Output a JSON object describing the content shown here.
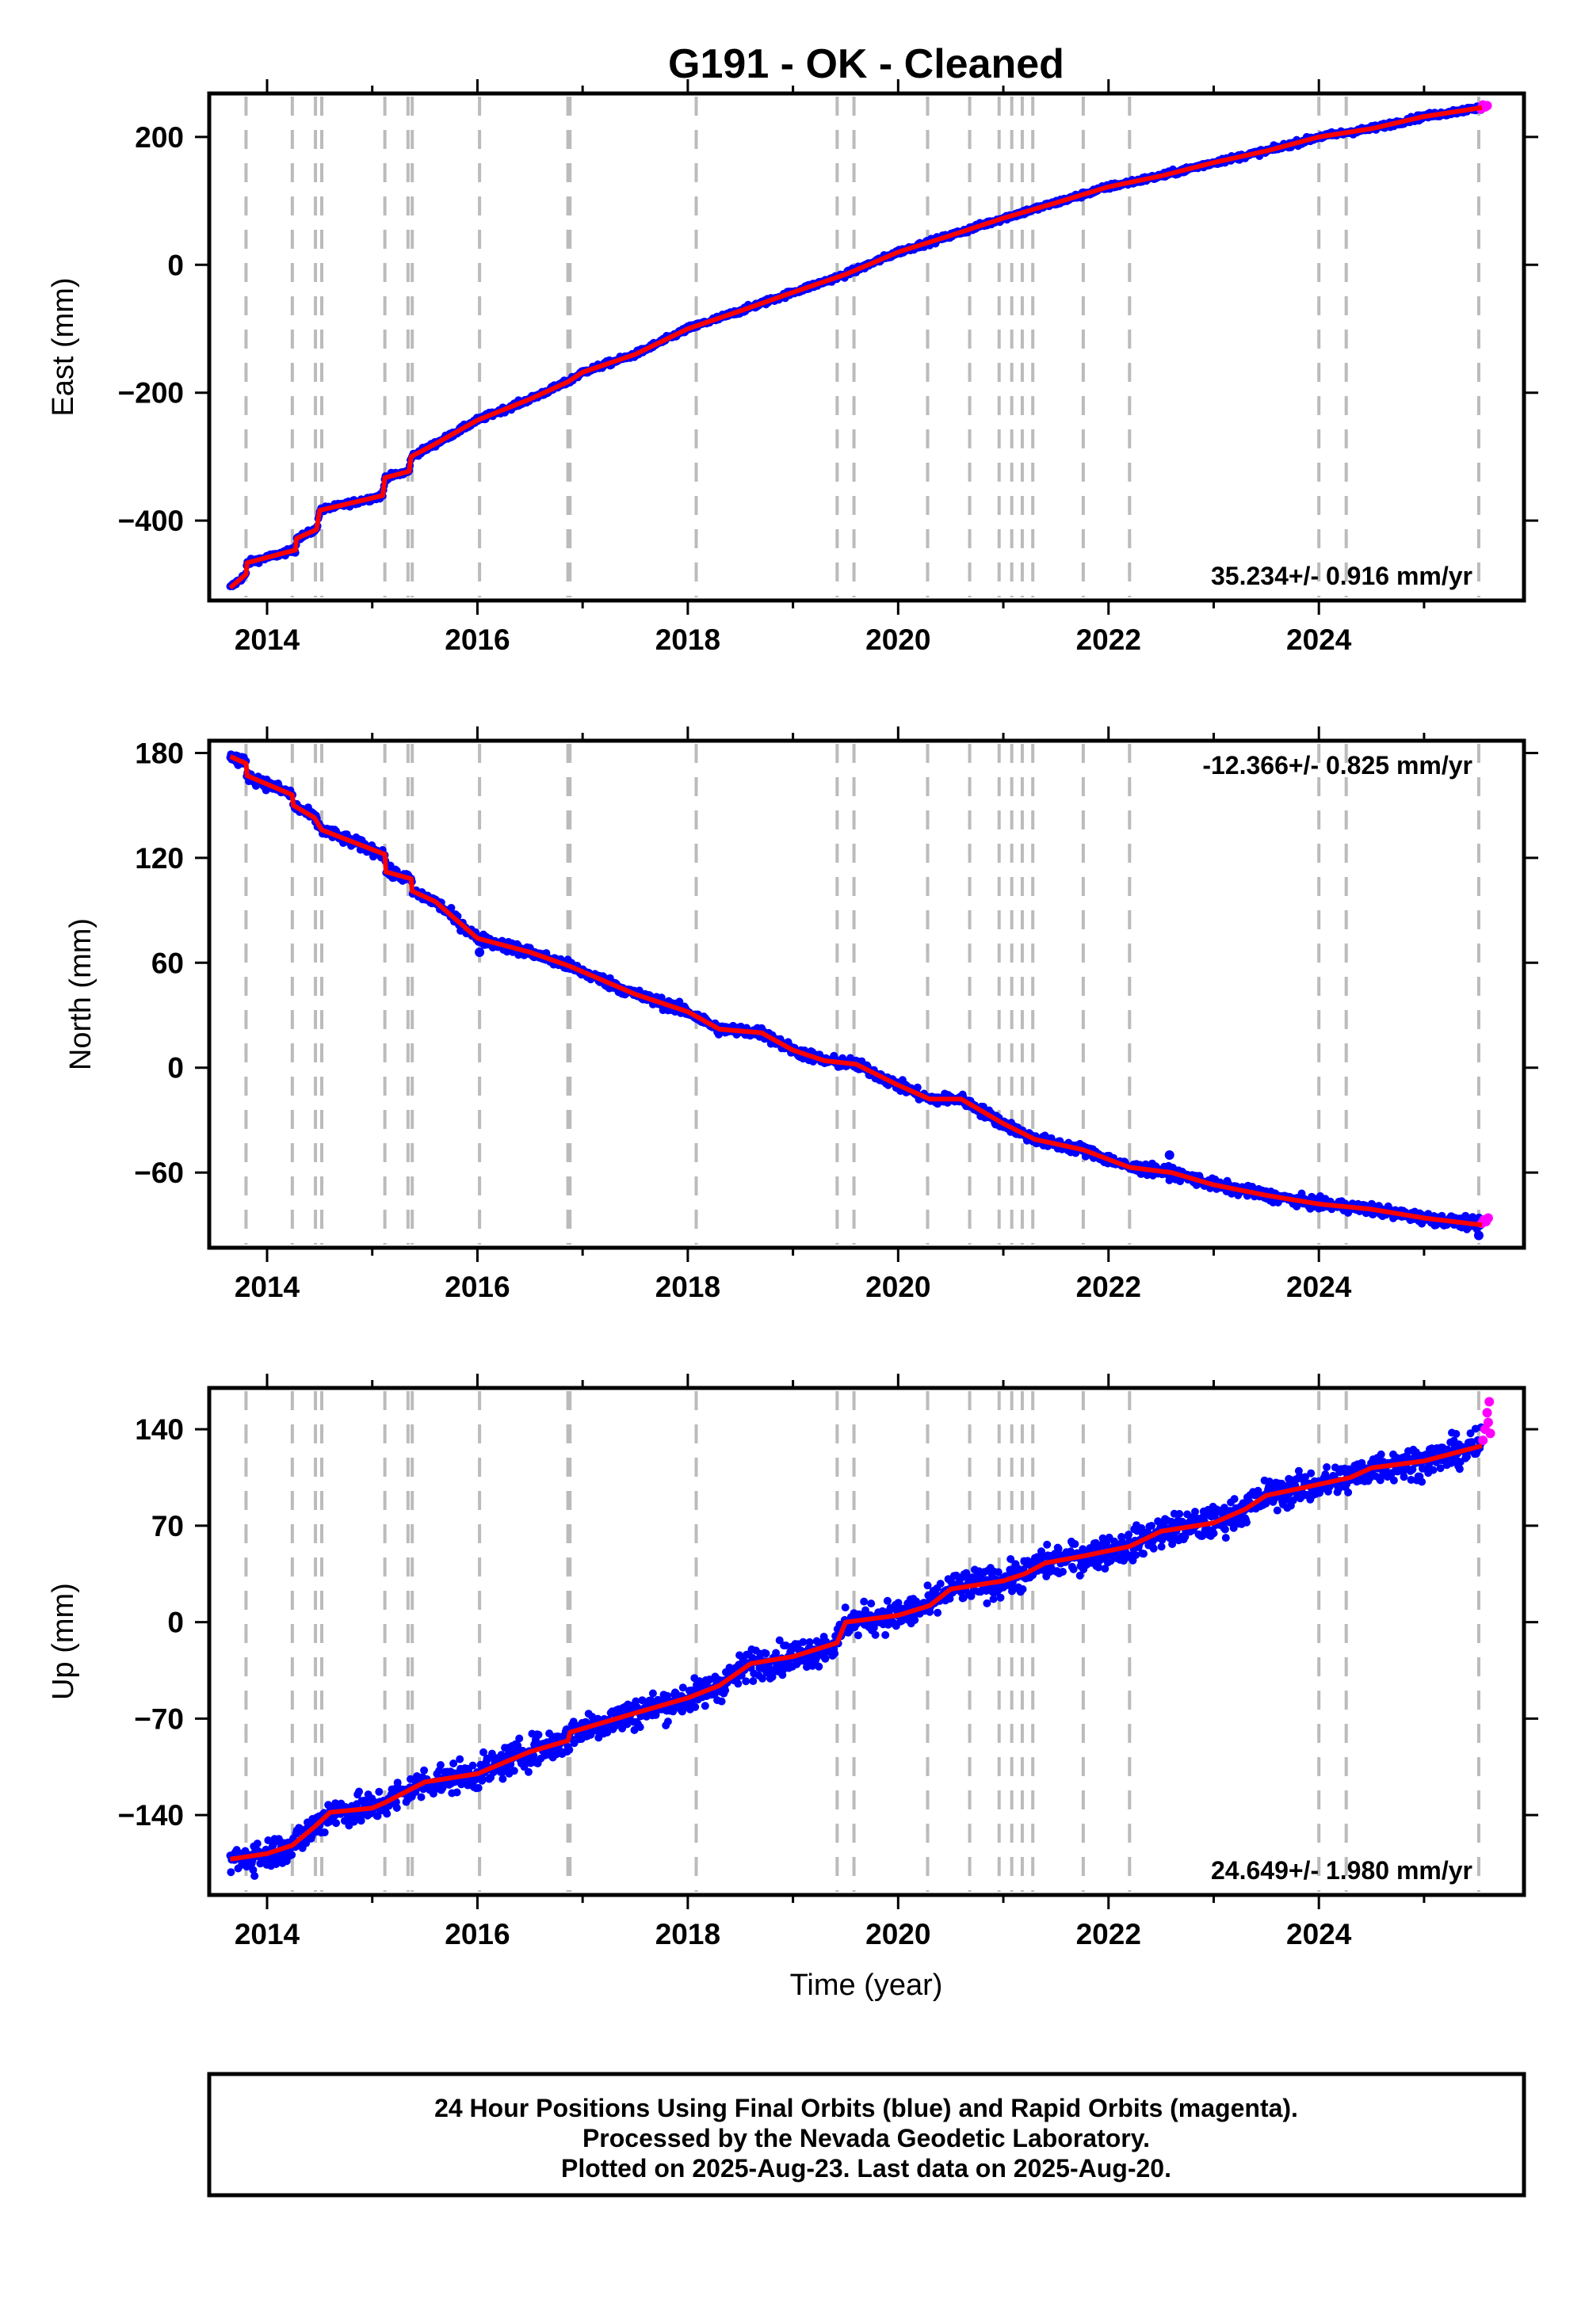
{
  "title": "G191  - OK - Cleaned",
  "x_axis_label": "Time (year)",
  "footer": {
    "line1": "24 Hour Positions Using Final Orbits (blue) and Rapid Orbits (magenta).",
    "line2": "Processed by the Nevada Geodetic Laboratory.",
    "line3": "Plotted on 2025-Aug-23. Last data on 2025-Aug-20."
  },
  "colors": {
    "final": "#0000ff",
    "rapid": "#ff00ff",
    "model": "#ff0000",
    "steps": "#bbbbbb"
  },
  "chart_data": [
    {
      "type": "scatter",
      "ylabel": "East (mm)",
      "rate_label": "35.234+/- 0.916 mm/yr",
      "rate_position": "bottom-right",
      "xlim": [
        2013.45,
        2025.95
      ],
      "ylim": [
        -525,
        268
      ],
      "xticks": [
        2014,
        2016,
        2018,
        2020,
        2022,
        2024
      ],
      "yticks": [
        200,
        0,
        -200,
        -400
      ],
      "ytick_labels": [
        "200",
        "0",
        "−200",
        "−400"
      ],
      "noise": 3,
      "trend": [
        [
          2013.65,
          -505
        ],
        [
          2013.8,
          -484
        ],
        [
          2013.81,
          -466
        ],
        [
          2014.27,
          -446
        ],
        [
          2014.28,
          -428
        ],
        [
          2014.47,
          -414
        ],
        [
          2014.5,
          -384
        ],
        [
          2015.1,
          -361
        ],
        [
          2015.12,
          -333
        ],
        [
          2015.35,
          -323
        ],
        [
          2015.37,
          -300
        ],
        [
          2015.6,
          -280
        ],
        [
          2016.0,
          -243
        ],
        [
          2016.5,
          -210
        ],
        [
          2016.86,
          -183
        ],
        [
          2017.0,
          -168
        ],
        [
          2017.5,
          -140
        ],
        [
          2018.0,
          -100
        ],
        [
          2018.5,
          -72
        ],
        [
          2019.0,
          -43
        ],
        [
          2019.5,
          -15
        ],
        [
          2020.0,
          20
        ],
        [
          2020.5,
          46
        ],
        [
          2021.0,
          73
        ],
        [
          2021.5,
          97
        ],
        [
          2022.0,
          122
        ],
        [
          2022.5,
          139
        ],
        [
          2023.0,
          160
        ],
        [
          2023.5,
          178
        ],
        [
          2024.0,
          200
        ],
        [
          2024.5,
          213
        ],
        [
          2025.0,
          232
        ],
        [
          2025.55,
          246
        ]
      ],
      "rapid_points": [
        [
          2025.54,
          244
        ],
        [
          2025.56,
          250
        ],
        [
          2025.58,
          247
        ],
        [
          2025.6,
          249
        ]
      ],
      "step_epochs": [
        2013.8,
        2014.24,
        2014.46,
        2014.52,
        2015.12,
        2015.34,
        2015.38,
        2016.02,
        2016.86,
        2016.88,
        2018.08,
        2019.42,
        2019.58,
        2020.28,
        2020.68,
        2020.96,
        2021.08,
        2021.18,
        2021.28,
        2021.76,
        2022.2,
        2024.0,
        2024.26,
        2025.52
      ]
    },
    {
      "type": "scatter",
      "ylabel": "North (mm)",
      "rate_label": "-12.366+/- 0.825 mm/yr",
      "rate_position": "top-right",
      "xlim": [
        2013.45,
        2025.95
      ],
      "ylim": [
        -103,
        187
      ],
      "xticks": [
        2014,
        2016,
        2018,
        2020,
        2022,
        2024
      ],
      "yticks": [
        180,
        120,
        60,
        0,
        -60
      ],
      "ytick_labels": [
        "180",
        "120",
        "60",
        "0",
        "−60"
      ],
      "noise": 2.2,
      "trend": [
        [
          2013.65,
          178
        ],
        [
          2013.8,
          174
        ],
        [
          2013.81,
          167
        ],
        [
          2014.24,
          156
        ],
        [
          2014.25,
          150
        ],
        [
          2014.45,
          143
        ],
        [
          2014.52,
          136
        ],
        [
          2015.12,
          122
        ],
        [
          2015.13,
          112
        ],
        [
          2015.37,
          108
        ],
        [
          2015.38,
          101
        ],
        [
          2015.6,
          95
        ],
        [
          2016.0,
          74
        ],
        [
          2016.5,
          66
        ],
        [
          2016.88,
          58
        ],
        [
          2017.5,
          42
        ],
        [
          2018.0,
          32
        ],
        [
          2018.3,
          22
        ],
        [
          2018.7,
          20
        ],
        [
          2019.0,
          10
        ],
        [
          2019.3,
          4
        ],
        [
          2019.6,
          2
        ],
        [
          2020.0,
          -10
        ],
        [
          2020.3,
          -18
        ],
        [
          2020.6,
          -18
        ],
        [
          2021.0,
          -32
        ],
        [
          2021.2,
          -38
        ],
        [
          2021.3,
          -41
        ],
        [
          2021.76,
          -47
        ],
        [
          2022.2,
          -57
        ],
        [
          2022.6,
          -60
        ],
        [
          2023.0,
          -67
        ],
        [
          2023.5,
          -73
        ],
        [
          2024.0,
          -78
        ],
        [
          2024.5,
          -81
        ],
        [
          2025.0,
          -86
        ],
        [
          2025.55,
          -90
        ]
      ],
      "rapid_points": [
        [
          2025.55,
          -89
        ],
        [
          2025.57,
          -87
        ],
        [
          2025.59,
          -88
        ],
        [
          2025.61,
          -86
        ]
      ],
      "outliers": [
        [
          2016.02,
          66
        ],
        [
          2022.58,
          -50
        ],
        [
          2025.52,
          -96
        ]
      ],
      "step_epochs": [
        2013.8,
        2014.24,
        2014.46,
        2014.52,
        2015.12,
        2015.34,
        2015.38,
        2016.02,
        2016.86,
        2016.88,
        2018.08,
        2019.42,
        2019.58,
        2020.28,
        2020.68,
        2020.96,
        2021.08,
        2021.18,
        2021.28,
        2021.76,
        2022.2,
        2024.0,
        2024.26,
        2025.52
      ]
    },
    {
      "type": "scatter",
      "ylabel": "Up (mm)",
      "rate_label": "24.649+/- 1.980 mm/yr",
      "rate_position": "bottom-right",
      "xlim": [
        2013.45,
        2025.95
      ],
      "ylim": [
        -198,
        170
      ],
      "xticks": [
        2014,
        2016,
        2018,
        2020,
        2022,
        2024
      ],
      "yticks": [
        140,
        70,
        0,
        -70,
        -140
      ],
      "ytick_labels": [
        "140",
        "70",
        "0",
        "−70",
        "−140"
      ],
      "noise": 8,
      "trend": [
        [
          2013.65,
          -172
        ],
        [
          2014.0,
          -168
        ],
        [
          2014.24,
          -162
        ],
        [
          2014.46,
          -148
        ],
        [
          2014.6,
          -138
        ],
        [
          2015.0,
          -135
        ],
        [
          2015.12,
          -131
        ],
        [
          2015.5,
          -116
        ],
        [
          2016.0,
          -110
        ],
        [
          2016.5,
          -94
        ],
        [
          2016.86,
          -86
        ],
        [
          2016.88,
          -80
        ],
        [
          2017.5,
          -66
        ],
        [
          2018.0,
          -55
        ],
        [
          2018.3,
          -46
        ],
        [
          2018.6,
          -30
        ],
        [
          2019.0,
          -25
        ],
        [
          2019.42,
          -15
        ],
        [
          2019.5,
          0
        ],
        [
          2020.0,
          5
        ],
        [
          2020.3,
          12
        ],
        [
          2020.5,
          24
        ],
        [
          2021.0,
          30
        ],
        [
          2021.2,
          35
        ],
        [
          2021.4,
          43
        ],
        [
          2021.76,
          48
        ],
        [
          2022.2,
          55
        ],
        [
          2022.5,
          66
        ],
        [
          2023.0,
          72
        ],
        [
          2023.3,
          82
        ],
        [
          2023.5,
          92
        ],
        [
          2024.0,
          100
        ],
        [
          2024.3,
          105
        ],
        [
          2024.5,
          112
        ],
        [
          2025.0,
          117
        ],
        [
          2025.55,
          128
        ]
      ],
      "rapid_points": [
        [
          2025.56,
          132
        ],
        [
          2025.58,
          140
        ],
        [
          2025.6,
          152
        ],
        [
          2025.62,
          160
        ],
        [
          2025.63,
          137
        ],
        [
          2025.61,
          145
        ]
      ],
      "step_epochs": [
        2013.8,
        2014.24,
        2014.46,
        2014.52,
        2015.12,
        2015.34,
        2015.38,
        2016.02,
        2016.86,
        2016.88,
        2018.08,
        2019.42,
        2019.58,
        2020.28,
        2020.68,
        2020.96,
        2021.08,
        2021.18,
        2021.28,
        2021.76,
        2022.2,
        2024.0,
        2024.26,
        2025.52
      ]
    }
  ]
}
